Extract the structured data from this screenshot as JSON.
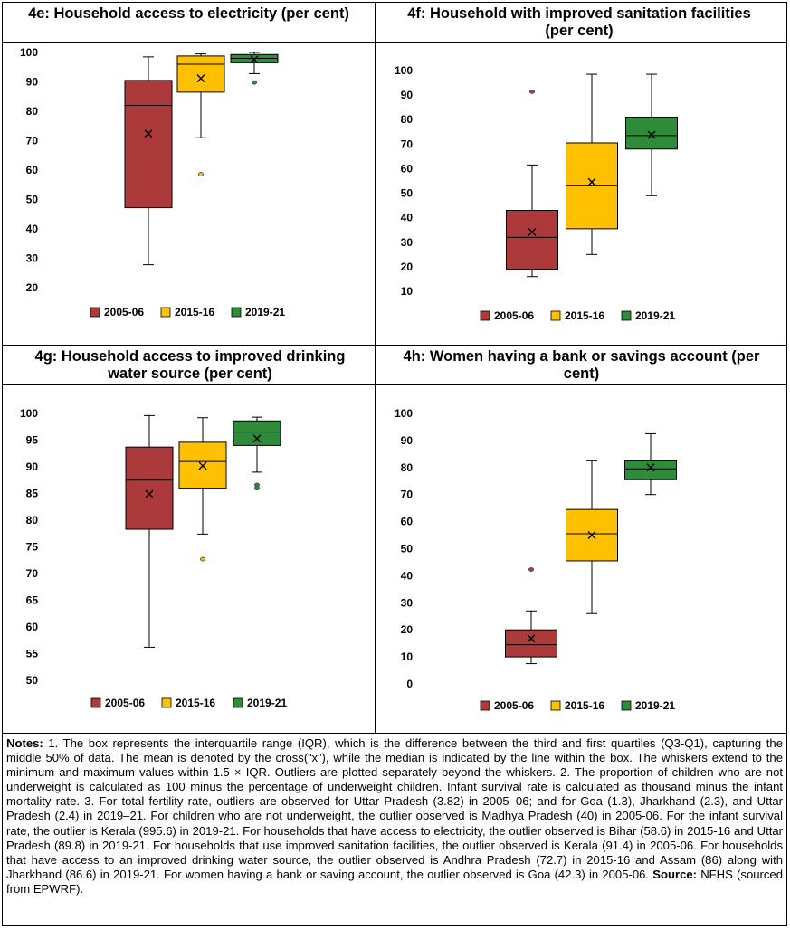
{
  "colors": {
    "2005-06": "#ad3a3a",
    "2015-16": "#ffc000",
    "2019-21": "#2e8b3a"
  },
  "panels": {
    "4e": {
      "title": "4e: Household access to electricity (per cent)"
    },
    "4f": {
      "title": "4f: Household with improved sanitation facilities (per cent)"
    },
    "4g": {
      "title": "4g: Household access to improved drinking water source (per cent)"
    },
    "4h": {
      "title": "4h: Women having a bank or savings account (per cent)"
    }
  },
  "chart_data": [
    {
      "id": "4e",
      "type": "box",
      "title": "4e: Household access to electricity (per cent)",
      "xlabel": "",
      "ylabel": "",
      "ylim": [
        20,
        100
      ],
      "yticks": [
        20,
        30,
        40,
        50,
        60,
        70,
        80,
        90,
        100
      ],
      "legend": "bottom",
      "series": [
        {
          "name": "2005-06",
          "min": 27.8,
          "q1": 47.2,
          "median": 82.0,
          "q3": 90.5,
          "max": 98.5,
          "mean": 72.4,
          "outliers": []
        },
        {
          "name": "2015-16",
          "min": 71.0,
          "q1": 86.5,
          "median": 96.0,
          "q3": 98.8,
          "max": 99.5,
          "mean": 91.2,
          "outliers": [
            58.6
          ]
        },
        {
          "name": "2019-21",
          "min": 92.8,
          "q1": 96.5,
          "median": 98.0,
          "q3": 99.3,
          "max": 100,
          "mean": 97.6,
          "outliers": [
            89.8
          ]
        }
      ]
    },
    {
      "id": "4f",
      "type": "box",
      "title": "4f: Household with improved sanitation facilities (per cent)",
      "xlabel": "",
      "ylabel": "",
      "ylim": [
        10,
        100
      ],
      "yticks": [
        10,
        20,
        30,
        40,
        50,
        60,
        70,
        80,
        90,
        100
      ],
      "legend": "bottom",
      "series": [
        {
          "name": "2005-06",
          "min": 16.0,
          "q1": 19.0,
          "median": 32.0,
          "q3": 43.0,
          "max": 61.5,
          "mean": 34.2,
          "outliers": [
            91.4
          ]
        },
        {
          "name": "2015-16",
          "min": 25.0,
          "q1": 35.5,
          "median": 53.0,
          "q3": 70.5,
          "max": 98.5,
          "mean": 54.6,
          "outliers": []
        },
        {
          "name": "2019-21",
          "min": 49.0,
          "q1": 68.0,
          "median": 73.5,
          "q3": 81.0,
          "max": 98.5,
          "mean": 73.8,
          "outliers": []
        }
      ]
    },
    {
      "id": "4g",
      "type": "box",
      "title": "4g: Household access to improved drinking water source (per cent)",
      "xlabel": "",
      "ylabel": "",
      "ylim": [
        50,
        100
      ],
      "yticks": [
        50,
        55,
        60,
        65,
        70,
        75,
        80,
        85,
        90,
        95,
        100
      ],
      "legend": "bottom",
      "series": [
        {
          "name": "2005-06",
          "min": 56.2,
          "q1": 78.3,
          "median": 87.5,
          "q3": 93.7,
          "max": 99.6,
          "mean": 84.9,
          "outliers": []
        },
        {
          "name": "2015-16",
          "min": 77.4,
          "q1": 86.0,
          "median": 91.0,
          "q3": 94.6,
          "max": 99.2,
          "mean": 90.2,
          "outliers": [
            72.7
          ]
        },
        {
          "name": "2019-21",
          "min": 89.0,
          "q1": 94.0,
          "median": 96.5,
          "q3": 98.6,
          "max": 99.3,
          "mean": 95.3,
          "outliers": [
            86.6,
            86.0
          ]
        }
      ]
    },
    {
      "id": "4h",
      "type": "box",
      "title": "4h: Women having a bank or savings account (per cent)",
      "xlabel": "",
      "ylabel": "",
      "ylim": [
        0,
        100
      ],
      "yticks": [
        0,
        10,
        20,
        30,
        40,
        50,
        60,
        70,
        80,
        90,
        100
      ],
      "legend": "bottom",
      "series": [
        {
          "name": "2005-06",
          "min": 7.5,
          "q1": 10.0,
          "median": 14.5,
          "q3": 20.0,
          "max": 27.0,
          "mean": 16.8,
          "outliers": [
            42.3
          ]
        },
        {
          "name": "2015-16",
          "min": 26.0,
          "q1": 45.5,
          "median": 55.5,
          "q3": 64.5,
          "max": 82.5,
          "mean": 55.0,
          "outliers": []
        },
        {
          "name": "2019-21",
          "min": 70.0,
          "q1": 75.5,
          "median": 79.5,
          "q3": 82.5,
          "max": 92.5,
          "mean": 80.0,
          "outliers": []
        }
      ]
    }
  ],
  "notes": {
    "label": "Notes:",
    "text": " 1. The box represents the interquartile range (IQR), which is the difference between the third and first quartiles (Q3-Q1), capturing the middle 50% of data. The mean is denoted by the cross(“x”), while the median is indicated by the line within the box. The whiskers extend to the minimum and maximum values within 1.5 × IQR. Outliers are plotted separately beyond the whiskers. 2. The proportion of children who are not underweight is calculated as 100 minus the percentage of underweight children. Infant survival rate is calculated as thousand minus the infant mortality rate. 3. For total fertility rate, outliers are observed for Uttar Pradesh (3.82) in 2005–06; and for Goa (1.3), Jharkhand (2.3), and Uttar Pradesh (2.4) in 2019–21. For children who are not underweight, the outlier observed is Madhya Pradesh (40) in 2005-06. For the infant survival rate, the outlier is Kerala (995.6) in 2019-21. For households that have access to electricity, the outlier observed is Bihar (58.6) in 2015-16 and Uttar Pradesh (89.8) in 2019-21. For households that use improved sanitation facilities, the outlier observed is Kerala (91.4) in 2005-06. For households that have access to an improved drinking water source, the outlier observed is Andhra Pradesh (72.7) in 2015-16 and Assam (86) along with Jharkhand (86.6) in 2019-21. For women having a bank or saving account, the outlier observed is Goa (42.3) in 2005-06.",
    "source_label": "Source:",
    "source_text": " NFHS (sourced from EPWRF)."
  }
}
